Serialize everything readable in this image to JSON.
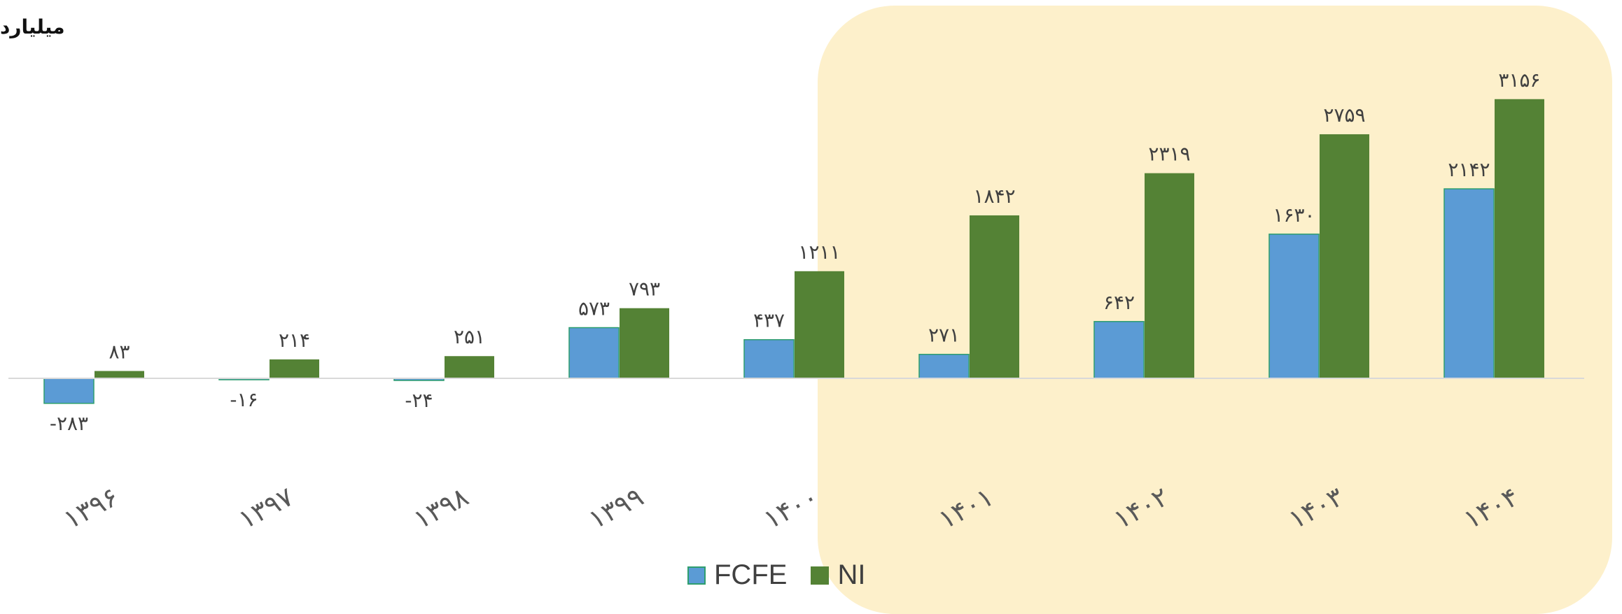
{
  "unit_label": "میلیارد",
  "colors": {
    "fcfe": "#5b9bd5",
    "fcfe_border": "#2e9e6e",
    "ni": "#548235",
    "forecast_bg": "#fdf0cb",
    "axis": "#d9d9d9",
    "value_text": "#404040",
    "tick_text": "#595959"
  },
  "chart_data": {
    "type": "bar",
    "categories": [
      "۱۳۹۶",
      "۱۳۹۷",
      "۱۳۹۸",
      "۱۳۹۹",
      "۱۴۰۰",
      "۱۴۰۱",
      "۱۴۰۲",
      "۱۴۰۳",
      "۱۴۰۴"
    ],
    "series": [
      {
        "name": "FCFE",
        "values": [
          -283,
          -16,
          -24,
          573,
          437,
          271,
          642,
          1630,
          2142
        ],
        "labels": [
          "-۲۸۳",
          "-۱۶",
          "-۲۴",
          "۵۷۳",
          "۴۳۷",
          "۲۷۱",
          "۶۴۲",
          "۱۶۳۰",
          "۲۱۴۲"
        ]
      },
      {
        "name": "NI",
        "values": [
          83,
          214,
          251,
          793,
          1211,
          1842,
          2319,
          2759,
          3156
        ],
        "labels": [
          "۸۳",
          "۲۱۴",
          "۲۵۱",
          "۷۹۳",
          "۱۲۱۱",
          "۱۸۴۲",
          "۲۳۱۹",
          "۲۷۵۹",
          "۳۱۵۶"
        ]
      }
    ],
    "highlighted_categories": [
      "۱۴۰۱",
      "۱۴۰۲",
      "۱۴۰۳",
      "۱۴۰۴"
    ],
    "grid": false,
    "legend_position": "bottom"
  }
}
